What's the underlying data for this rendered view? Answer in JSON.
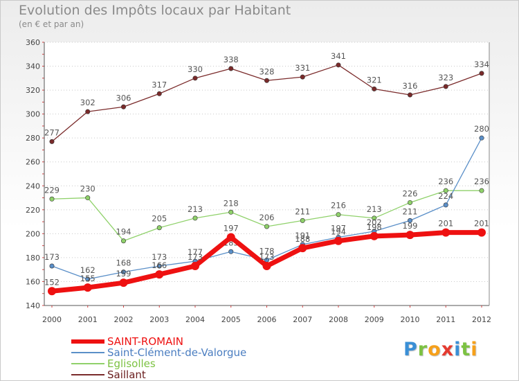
{
  "header": {
    "title": "Evolution des Impôts locaux par Habitant",
    "subtitle": "(en € et par an)"
  },
  "logo": {
    "text": "Proxiti",
    "letters": [
      {
        "ch": "P",
        "color": "#3a8fd6"
      },
      {
        "ch": "r",
        "color": "#7cc242"
      },
      {
        "ch": "o",
        "color": "#f6a01a"
      },
      {
        "ch": "x",
        "color": "#e53a2f"
      },
      {
        "ch": "i",
        "color": "#3a8fd6"
      },
      {
        "ch": "t",
        "color": "#7cc242"
      },
      {
        "ch": "i",
        "color": "#f6a01a"
      }
    ]
  },
  "chart_data": {
    "type": "line",
    "title": "Evolution des Impôts locaux par Habitant",
    "subtitle": "(en € et par an)",
    "x": [
      "2000",
      "2001",
      "2002",
      "2003",
      "2004",
      "2005",
      "2006",
      "2007",
      "2008",
      "2009",
      "2010",
      "2011",
      "2012"
    ],
    "ylim": [
      140,
      360
    ],
    "yticks": [
      140,
      160,
      180,
      200,
      220,
      240,
      260,
      280,
      300,
      320,
      340,
      360
    ],
    "grid": "horizontal dotted",
    "legend_position": "bottom-left",
    "series": [
      {
        "name": "SAINT-ROMAIN",
        "color": "#ee1111",
        "labelColor": "#555555",
        "legendLabelColor": "#ee1111",
        "emphasis": true,
        "values": [
          152,
          155,
          159,
          166,
          173,
          197,
          173,
          188,
          194,
          198,
          199,
          201,
          201
        ],
        "labels": [
          "152",
          "155",
          "159",
          "166",
          "173",
          "197",
          "173",
          "188",
          "194",
          "198",
          "199",
          "201",
          "201"
        ]
      },
      {
        "name": "Saint-Clément-de-Valorgue",
        "color": "#5a8fc8",
        "labelColor": "#555555",
        "legendLabelColor": "#4a7dc0",
        "emphasis": false,
        "values": [
          173,
          162,
          168,
          173,
          177,
          185,
          178,
          191,
          197,
          202,
          211,
          224,
          280
        ],
        "labels": [
          "173",
          "162",
          "168",
          "173",
          "177",
          "185",
          "178",
          "191",
          "197",
          "202",
          "211",
          "224",
          "280"
        ]
      },
      {
        "name": "Eglisolles",
        "color": "#8fd16a",
        "labelColor": "#555555",
        "legendLabelColor": "#7cc242",
        "emphasis": false,
        "values": [
          229,
          230,
          194,
          205,
          213,
          218,
          206,
          211,
          216,
          213,
          226,
          236,
          236
        ],
        "labels": [
          "229",
          "230",
          "194",
          "205",
          "213",
          "218",
          "206",
          "211",
          "216",
          "213",
          "226",
          "236",
          "236"
        ]
      },
      {
        "name": "Saillant",
        "color": "#7a2a2a",
        "labelColor": "#555555",
        "legendLabelColor": "#6a1e1e",
        "emphasis": false,
        "values": [
          277,
          302,
          306,
          317,
          330,
          338,
          328,
          331,
          341,
          321,
          316,
          323,
          334
        ],
        "labels": [
          "277",
          "302",
          "306",
          "317",
          "330",
          "338",
          "328",
          "331",
          "341",
          "321",
          "316",
          "323",
          "334"
        ]
      }
    ]
  }
}
